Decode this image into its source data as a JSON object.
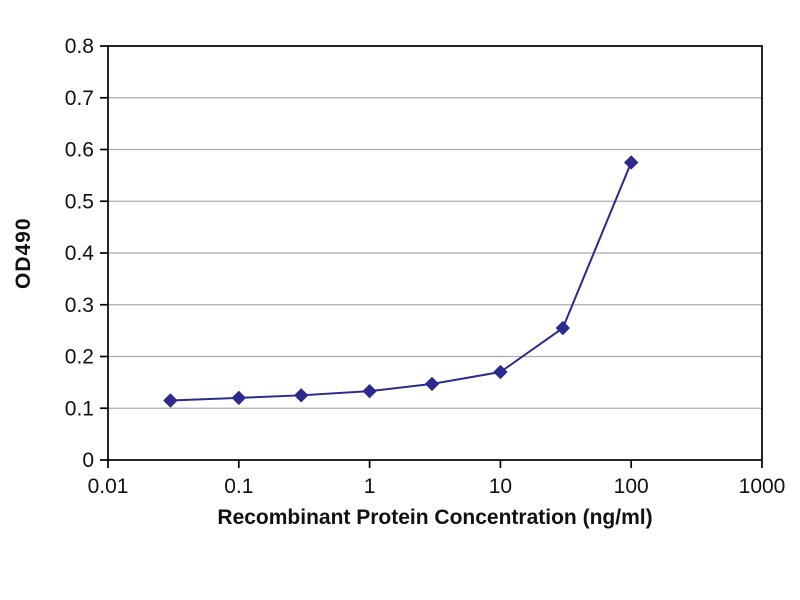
{
  "chart_data": {
    "type": "line",
    "x": [
      0.03,
      0.1,
      0.3,
      1,
      3,
      10,
      30,
      100
    ],
    "y": [
      0.115,
      0.12,
      0.125,
      0.133,
      0.147,
      0.17,
      0.255,
      0.575
    ],
    "title": "",
    "xlabel": "Recombinant Protein Concentration (ng/ml)",
    "ylabel": "OD490",
    "x_scale": "log",
    "xlim": [
      0.01,
      1000
    ],
    "ylim": [
      0,
      0.8
    ],
    "x_ticks": [
      0.01,
      0.1,
      1,
      10,
      100,
      1000
    ],
    "x_tick_labels": [
      "0.01",
      "0.1",
      "1",
      "10",
      "100",
      "1000"
    ],
    "y_ticks": [
      0,
      0.1,
      0.2,
      0.3,
      0.4,
      0.5,
      0.6,
      0.7,
      0.8
    ],
    "y_tick_labels": [
      "0",
      "0.1",
      "0.2",
      "0.3",
      "0.4",
      "0.5",
      "0.6",
      "0.7",
      "0.8"
    ],
    "grid": "horizontal",
    "legend": "none",
    "line_color": "#2b2b8e",
    "marker": "diamond",
    "grid_color": "#ababab",
    "axis_color": "#000000",
    "text_color": "#111111"
  }
}
